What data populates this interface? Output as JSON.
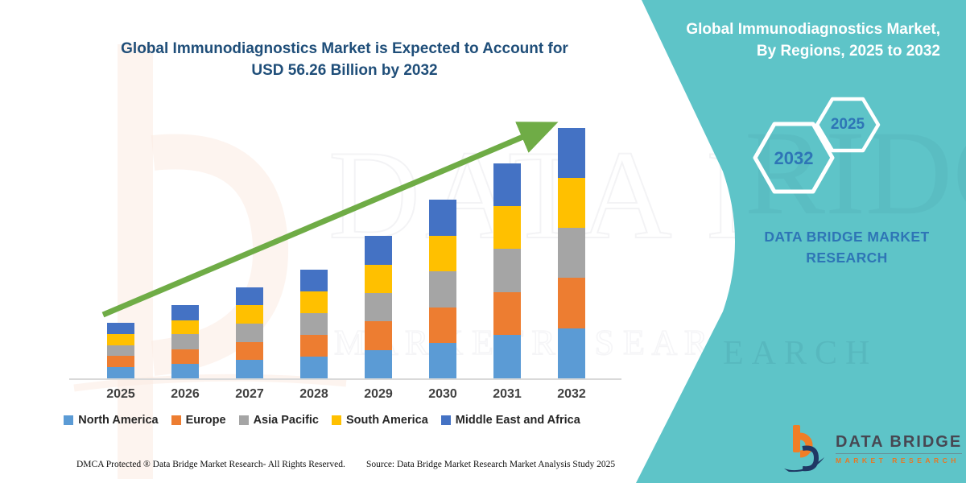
{
  "title": {
    "line1": "Global Immunodiagnostics Market is Expected to Account for",
    "line2": "USD 56.26 Billion by 2032"
  },
  "chart_data": {
    "type": "bar",
    "stacked": true,
    "title": "Global Immunodiagnostics Market is Expected to Account for USD 56.26 Billion by 2032",
    "unit": "USD Billion",
    "categories": [
      "2025",
      "2026",
      "2027",
      "2028",
      "2029",
      "2030",
      "2031",
      "2032"
    ],
    "series": [
      {
        "name": "North America",
        "color": "#5B9BD5",
        "values": [
          2.5,
          3.3,
          4.1,
          4.9,
          6.4,
          8.0,
          9.7,
          11.3
        ]
      },
      {
        "name": "Europe",
        "color": "#ED7D31",
        "values": [
          2.5,
          3.3,
          4.1,
          4.9,
          6.4,
          8.0,
          9.7,
          11.3
        ]
      },
      {
        "name": "Asia Pacific",
        "color": "#A5A5A5",
        "values": [
          2.5,
          3.3,
          4.1,
          4.9,
          6.4,
          8.0,
          9.7,
          11.2
        ]
      },
      {
        "name": "South America",
        "color": "#FFC000",
        "values": [
          2.4,
          3.2,
          4.1,
          4.9,
          6.4,
          8.1,
          9.6,
          11.2
        ]
      },
      {
        "name": "Middle East and Africa",
        "color": "#4472C4",
        "values": [
          2.5,
          3.3,
          4.0,
          4.8,
          6.4,
          8.1,
          9.6,
          11.26
        ]
      }
    ],
    "totals": [
      12.4,
      16.4,
      20.4,
      24.4,
      32.0,
      40.2,
      48.3,
      56.26
    ],
    "ylim": [
      0,
      56.26
    ],
    "grid": false,
    "y_axis_visible": false,
    "legend_position": "bottom",
    "trend_arrow_color": "#6FAC46"
  },
  "panel": {
    "background": "#5EC4C8",
    "title_line1": "Global Immunodiagnostics Market,",
    "title_line2": "By Regions, 2025 to 2032",
    "hexagon_large": "2032",
    "hexagon_small": "2025",
    "brand_text": "DATA BRIDGE MARKET RESEARCH"
  },
  "footer": {
    "dmca": "DMCA Protected ® Data Bridge Market Research-  All Rights Reserved.",
    "source": "Source: Data Bridge Market Research  Market Analysis Study 2025"
  },
  "logo": {
    "name": "DATA BRIDGE",
    "subtitle": "MARKET RESEARCH",
    "orange": "#F07E26",
    "navy": "#1F3864"
  },
  "watermark": {
    "text_primary": "DATA BRI",
    "text_secondary": "M A R K E T   R E S E A R C H"
  },
  "colors": {
    "title_blue": "#1F4E79",
    "panel_teal": "#5EC4C8",
    "accent_blue": "#2E75B6",
    "arrow_green": "#6FAC46"
  }
}
